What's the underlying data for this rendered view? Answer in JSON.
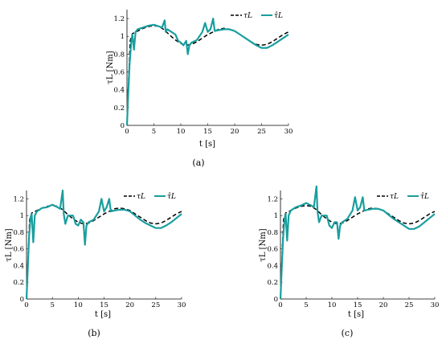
{
  "chart_data": [
    {
      "type": "line",
      "caption": "(a)",
      "xlabel": "t [s]",
      "ylabel": "τL [Nm]",
      "xlim": [
        0,
        30
      ],
      "ylim": [
        0,
        1.3
      ],
      "xticks": [
        "0",
        "5",
        "10",
        "15",
        "20",
        "25",
        "30"
      ],
      "yticks": [
        "0",
        "0.2",
        "0.4",
        "0.6",
        "0.8",
        "1",
        "1.2"
      ],
      "legend_position": "top-right",
      "series": [
        {
          "name": "τL",
          "style": "dashed",
          "color": "#000000",
          "x": [
            0,
            0.3,
            0.6,
            1,
            2,
            3,
            4,
            5,
            6,
            7,
            8,
            9,
            10,
            11,
            12,
            13,
            14,
            15,
            16,
            17,
            18,
            19,
            20,
            21,
            22,
            23,
            24,
            25,
            26,
            27,
            28,
            29,
            30
          ],
          "y": [
            0,
            0.5,
            0.95,
            1.03,
            1.06,
            1.09,
            1.11,
            1.12,
            1.11,
            1.07,
            1.01,
            0.96,
            0.92,
            0.9,
            0.91,
            0.94,
            0.98,
            1.02,
            1.05,
            1.08,
            1.09,
            1.08,
            1.06,
            1.02,
            0.98,
            0.94,
            0.91,
            0.9,
            0.91,
            0.94,
            0.98,
            1.02,
            1.05
          ]
        },
        {
          "name": "τ̂L",
          "style": "solid",
          "color": "#1a9e9e",
          "x": [
            0,
            0.2,
            0.5,
            0.8,
            1.0,
            1.3,
            1.6,
            2,
            2.5,
            3,
            4,
            5,
            6,
            6.5,
            7,
            7.2,
            7.5,
            8,
            9,
            9.5,
            10,
            10.5,
            11,
            11.3,
            11.6,
            12,
            13,
            14,
            14.5,
            15,
            15.5,
            16,
            16.3,
            17,
            18,
            19,
            20,
            21,
            22,
            23,
            24,
            25,
            26,
            27,
            28,
            29,
            30
          ],
          "y": [
            0,
            0.3,
            0.7,
            0.95,
            1.02,
            0.85,
            1.05,
            1.08,
            1.09,
            1.1,
            1.12,
            1.13,
            1.11,
            1.1,
            1.18,
            1.05,
            1.08,
            1.06,
            1.02,
            0.95,
            0.93,
            0.9,
            0.95,
            0.8,
            0.9,
            0.93,
            0.96,
            1.05,
            1.15,
            1.05,
            1.08,
            1.2,
            1.06,
            1.07,
            1.08,
            1.08,
            1.06,
            1.02,
            0.98,
            0.94,
            0.9,
            0.87,
            0.87,
            0.9,
            0.94,
            0.98,
            1.02
          ]
        }
      ]
    },
    {
      "type": "line",
      "caption": "(b)",
      "xlabel": "t [s]",
      "ylabel": "τL [Nm]",
      "xlim": [
        0,
        30
      ],
      "ylim": [
        0,
        1.3
      ],
      "xticks": [
        "0",
        "5",
        "10",
        "15",
        "20",
        "25",
        "30"
      ],
      "yticks": [
        "0",
        "0.2",
        "0.4",
        "0.6",
        "0.8",
        "1",
        "1.2"
      ],
      "legend_position": "top-right",
      "series": [
        {
          "name": "τL",
          "style": "dashed",
          "color": "#000000",
          "x": [
            0,
            0.3,
            0.6,
            1,
            2,
            3,
            4,
            5,
            6,
            7,
            8,
            9,
            10,
            11,
            12,
            13,
            14,
            15,
            16,
            17,
            18,
            19,
            20,
            21,
            22,
            23,
            24,
            25,
            26,
            27,
            28,
            29,
            30
          ],
          "y": [
            0,
            0.5,
            0.95,
            1.03,
            1.06,
            1.09,
            1.11,
            1.12,
            1.11,
            1.07,
            1.01,
            0.96,
            0.92,
            0.9,
            0.91,
            0.94,
            0.98,
            1.02,
            1.05,
            1.08,
            1.09,
            1.08,
            1.06,
            1.02,
            0.98,
            0.94,
            0.91,
            0.9,
            0.91,
            0.94,
            0.98,
            1.02,
            1.05
          ]
        },
        {
          "name": "τ̂L",
          "style": "solid",
          "color": "#1a9e9e",
          "x": [
            0,
            0.2,
            0.5,
            0.8,
            1.0,
            1.3,
            1.6,
            2,
            2.5,
            3,
            4,
            5,
            6,
            6.5,
            7,
            7.2,
            7.5,
            8,
            9,
            9.5,
            10,
            10.5,
            11,
            11.3,
            11.6,
            12,
            13,
            14,
            14.5,
            15,
            15.5,
            16,
            16.3,
            17,
            18,
            19,
            20,
            21,
            22,
            23,
            24,
            25,
            26,
            27,
            28,
            29,
            30
          ],
          "y": [
            0,
            0.3,
            0.75,
            0.98,
            1.02,
            0.68,
            1.0,
            1.05,
            1.07,
            1.09,
            1.1,
            1.13,
            1.1,
            1.08,
            1.3,
            1.02,
            0.9,
            1.0,
            1.0,
            0.9,
            0.88,
            0.95,
            0.92,
            0.65,
            0.88,
            0.92,
            0.95,
            1.05,
            1.2,
            1.05,
            1.1,
            1.2,
            1.05,
            1.06,
            1.07,
            1.07,
            1.05,
            1.0,
            0.95,
            0.91,
            0.88,
            0.85,
            0.85,
            0.88,
            0.92,
            0.97,
            1.02
          ]
        }
      ]
    },
    {
      "type": "line",
      "caption": "(c)",
      "xlabel": "t [s]",
      "ylabel": "τL [Nm]",
      "xlim": [
        0,
        30
      ],
      "ylim": [
        0,
        1.3
      ],
      "xticks": [
        "0",
        "5",
        "10",
        "15",
        "20",
        "25",
        "30"
      ],
      "yticks": [
        "0",
        "0.2",
        "0.4",
        "0.6",
        "0.8",
        "1",
        "1.2"
      ],
      "legend_position": "top-right",
      "series": [
        {
          "name": "τL",
          "style": "dashed",
          "color": "#000000",
          "x": [
            0,
            0.3,
            0.6,
            1,
            2,
            3,
            4,
            5,
            6,
            7,
            8,
            9,
            10,
            11,
            12,
            13,
            14,
            15,
            16,
            17,
            18,
            19,
            20,
            21,
            22,
            23,
            24,
            25,
            26,
            27,
            28,
            29,
            30
          ],
          "y": [
            0,
            0.5,
            0.95,
            1.03,
            1.06,
            1.09,
            1.11,
            1.12,
            1.11,
            1.07,
            1.01,
            0.96,
            0.92,
            0.9,
            0.91,
            0.94,
            0.98,
            1.02,
            1.05,
            1.08,
            1.09,
            1.08,
            1.06,
            1.02,
            0.98,
            0.94,
            0.91,
            0.9,
            0.91,
            0.94,
            0.98,
            1.02,
            1.05
          ]
        },
        {
          "name": "τ̂L",
          "style": "solid",
          "color": "#1a9e9e",
          "x": [
            0,
            0.2,
            0.5,
            0.8,
            1.0,
            1.3,
            1.6,
            2,
            2.5,
            3,
            4,
            5,
            6,
            6.5,
            7,
            7.2,
            7.5,
            8,
            9,
            9.5,
            10,
            10.5,
            11,
            11.3,
            11.6,
            12,
            13,
            14,
            14.5,
            15,
            15.5,
            16,
            16.3,
            17,
            18,
            19,
            20,
            21,
            22,
            23,
            24,
            25,
            26,
            27,
            28,
            29,
            30
          ],
          "y": [
            0,
            0.3,
            0.72,
            0.96,
            1.02,
            0.7,
            1.0,
            1.06,
            1.08,
            1.1,
            1.12,
            1.15,
            1.12,
            1.1,
            1.35,
            1.05,
            0.92,
            1.0,
            1.0,
            0.88,
            0.85,
            0.92,
            0.92,
            0.72,
            0.88,
            0.92,
            0.96,
            1.06,
            1.22,
            1.06,
            1.1,
            1.22,
            1.06,
            1.07,
            1.08,
            1.08,
            1.06,
            1.01,
            0.96,
            0.92,
            0.88,
            0.84,
            0.84,
            0.87,
            0.92,
            0.97,
            1.02
          ]
        }
      ]
    }
  ]
}
